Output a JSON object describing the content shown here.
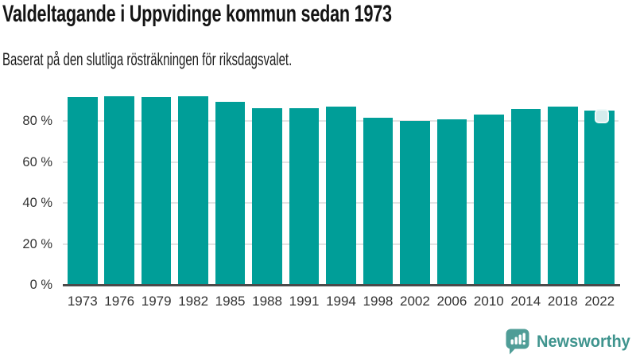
{
  "header": {
    "title": "Valdeltagande i Uppvidinge kommun sedan 1973",
    "subtitle": "Baserat på den slutliga rösträkningen för riksdagsvalet."
  },
  "chart_data": {
    "type": "bar",
    "title": "Valdeltagande i Uppvidinge kommun sedan 1973",
    "subtitle": "Baserat på den slutliga rösträkningen för riksdagsvalet.",
    "categories": [
      "1973",
      "1976",
      "1979",
      "1982",
      "1985",
      "1988",
      "1991",
      "1994",
      "1998",
      "2002",
      "2006",
      "2010",
      "2014",
      "2018",
      "2022"
    ],
    "values": [
      91.5,
      92.2,
      91.5,
      91.9,
      89.5,
      86.2,
      86.2,
      86.8,
      81.6,
      79.9,
      80.6,
      83.2,
      85.8,
      87.1,
      84.9
    ],
    "unit": "%",
    "xlabel": "",
    "ylabel": "",
    "ylim": [
      0,
      93
    ],
    "grid": true,
    "legend": "none",
    "yticks": [
      {
        "value": 0,
        "label": "0 %"
      },
      {
        "value": 20,
        "label": "20 %"
      },
      {
        "value": 40,
        "label": "40 %"
      },
      {
        "value": 60,
        "label": "60 %"
      },
      {
        "value": 80,
        "label": "80 %"
      }
    ],
    "highlight": {
      "category": "2022",
      "style": "light-rounded-cap-marker"
    }
  },
  "colors": {
    "bar": "#009E98",
    "highlight": "#D5ECED",
    "highlight_ring": "#F0F9F9",
    "grid": "#E3E3E3",
    "axis": "#4A4A4A",
    "text": "#333333",
    "brand": "#3F948E",
    "logo": "#4F9D97"
  },
  "footer": {
    "brand": "Newsworthy",
    "logo_icon": "newsworthy-speech-bubble-bar-chart-icon"
  }
}
